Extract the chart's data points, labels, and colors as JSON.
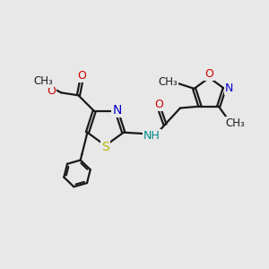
{
  "bg_color": "#e8e8e8",
  "bond_color": "#1a1a1a",
  "S_color": "#b8b800",
  "N_color": "#0000cc",
  "O_color": "#cc0000",
  "NH_color": "#008888",
  "line_width": 1.6,
  "figsize": [
    3.0,
    3.0
  ],
  "dpi": 100,
  "xlim": [
    0.0,
    10.0
  ],
  "ylim": [
    0.5,
    10.0
  ]
}
